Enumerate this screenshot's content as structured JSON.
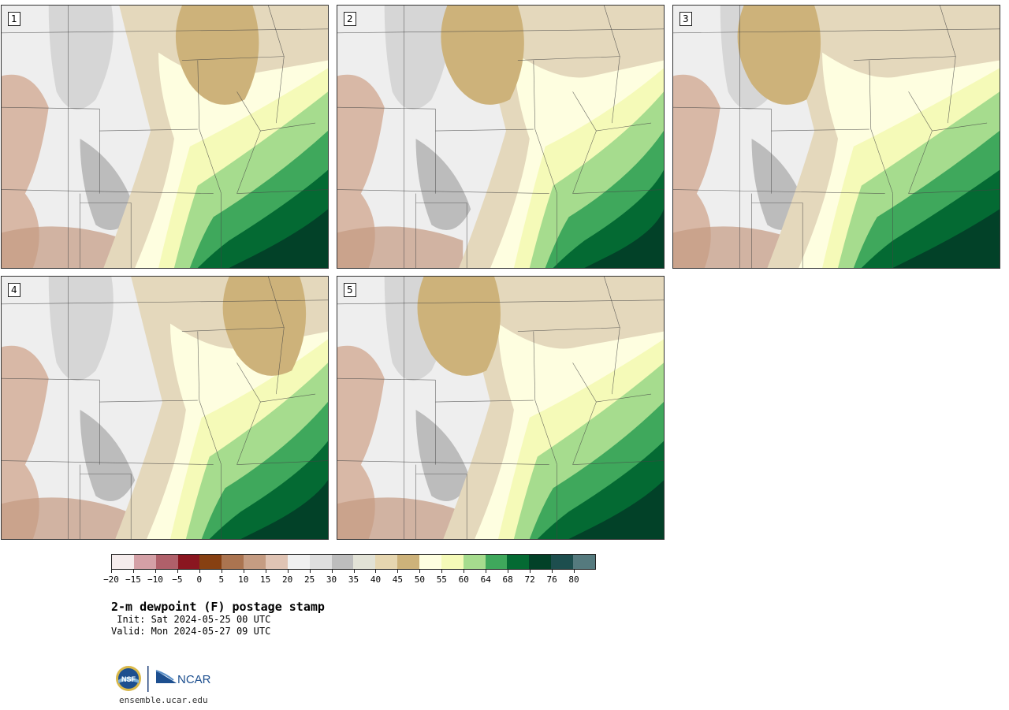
{
  "panels": [
    {
      "label": "1",
      "variant": 1
    },
    {
      "label": "2",
      "variant": 2
    },
    {
      "label": "3",
      "variant": 3
    },
    {
      "label": "4",
      "variant": 4
    },
    {
      "label": "5",
      "variant": 5
    }
  ],
  "colorbar": {
    "colors": [
      "#f5ecec",
      "#d4a0a6",
      "#b0606a",
      "#8a1620",
      "#874012",
      "#ab7450",
      "#c59c82",
      "#e0c4b4",
      "#f0f0f0",
      "#dedede",
      "#bdbdbd",
      "#e2e2d6",
      "#e6d6b0",
      "#cdb27a",
      "#fefee0",
      "#f5fab8",
      "#a6dc8e",
      "#3fa85c",
      "#046a33",
      "#024128",
      "#1d4e4e",
      "#557a7e"
    ],
    "tick_labels": [
      "−20",
      "−15",
      "−10",
      "−5",
      "0",
      "5",
      "10",
      "15",
      "20",
      "25",
      "30",
      "35",
      "40",
      "45",
      "50",
      "55",
      "60",
      "64",
      "68",
      "72",
      "76",
      "80"
    ]
  },
  "title": "2-m dewpoint (F) postage stamp",
  "init": " Init: Sat 2024-05-25 00 UTC",
  "valid": "Valid: Mon 2024-05-27 09 UTC",
  "logos": {
    "nsf": "NSF",
    "ncar": "NCAR"
  },
  "url": "ensemble.ucar.edu"
}
